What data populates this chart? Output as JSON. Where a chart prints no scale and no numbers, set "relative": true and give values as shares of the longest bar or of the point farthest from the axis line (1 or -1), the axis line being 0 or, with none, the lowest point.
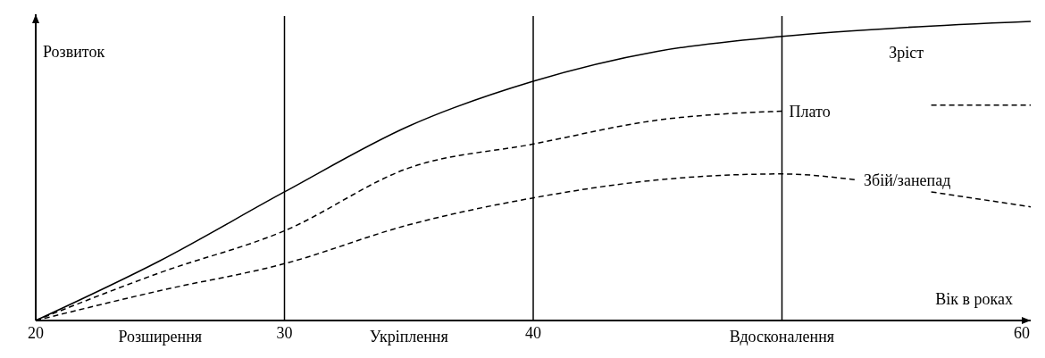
{
  "chart_data": {
    "type": "line",
    "relative": true,
    "ylabel": "Розвиток",
    "xlabel": "Вік в роках",
    "xlim": [
      20,
      60
    ],
    "xticks": [
      20,
      30,
      40,
      60
    ],
    "grid": false,
    "legend": false,
    "series": [
      {
        "name": "Зріст",
        "color": "#000000",
        "line_style": "solid",
        "x": [
          20,
          25,
          30,
          35,
          40,
          45,
          50,
          55,
          60
        ],
        "values": [
          0,
          0.2,
          0.43,
          0.65,
          0.8,
          0.9,
          0.95,
          0.98,
          1
        ]
      },
      {
        "name": "Плато",
        "color": "#000000",
        "line_style": "dashed",
        "x": [
          20,
          25,
          30,
          35,
          40,
          45,
          50,
          53,
          56,
          60
        ],
        "values": [
          0,
          0.16,
          0.3,
          0.51,
          0.59,
          0.67,
          0.7,
          null,
          0.72,
          0.72
        ]
      },
      {
        "name": "Збій/занепад",
        "color": "#000000",
        "line_style": "dashed",
        "x": [
          20,
          25,
          30,
          35,
          40,
          45,
          50,
          53,
          54.5,
          56,
          60
        ],
        "values": [
          0,
          0.1,
          0.19,
          0.32,
          0.41,
          0.47,
          0.49,
          0.47,
          null,
          0.43,
          0.38
        ]
      }
    ],
    "ref_lines": [
      {
        "axis": "x",
        "value": 30
      },
      {
        "axis": "x",
        "value": 40
      },
      {
        "axis": "x",
        "value": 50
      }
    ],
    "annotations": [
      "Розширення",
      "Укріплення",
      "Вдосконалення"
    ]
  }
}
